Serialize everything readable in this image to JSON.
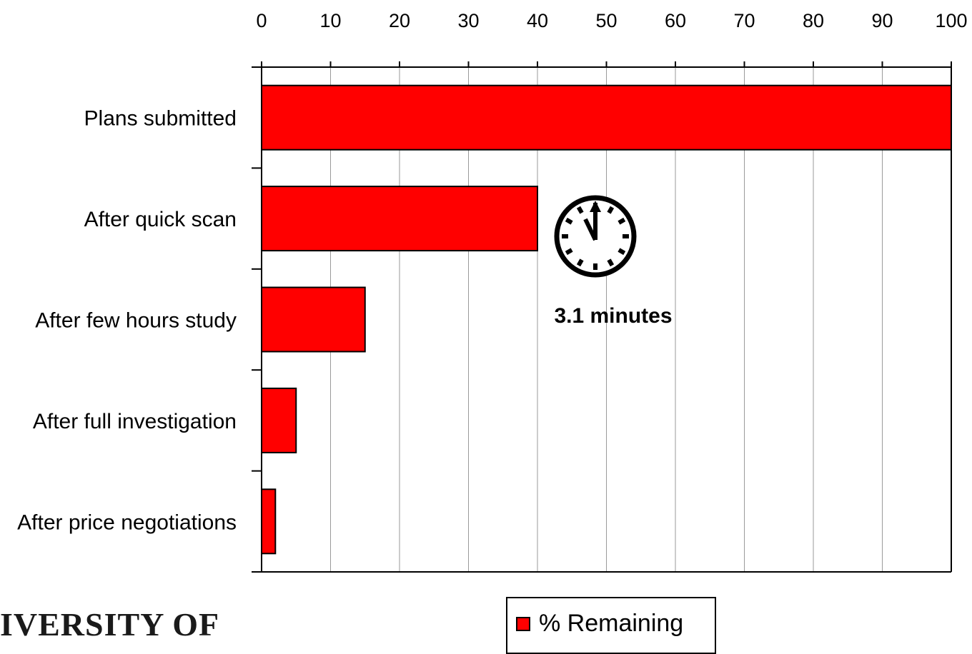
{
  "chart_data": {
    "type": "bar",
    "orientation": "horizontal",
    "categories": [
      "Plans submitted",
      "After quick scan",
      "After few hours study",
      "After full investigation",
      "After price negotiations"
    ],
    "series": [
      {
        "name": "% Remaining",
        "values": [
          100,
          40,
          15,
          5,
          2
        ],
        "color": "#ff0000"
      }
    ],
    "xlim": [
      0,
      100
    ],
    "xticks": [
      "0",
      "10",
      "20",
      "30",
      "40",
      "50",
      "60",
      "70",
      "80",
      "90",
      "100"
    ],
    "x_axis_position": "top",
    "grid": "vertical",
    "legend_position": "bottom-center",
    "annotation": {
      "text": "3.1 minutes",
      "icon": "clock-icon"
    }
  },
  "legend": {
    "label": "% Remaining"
  },
  "logo": {
    "text": "IVERSITY OF"
  }
}
